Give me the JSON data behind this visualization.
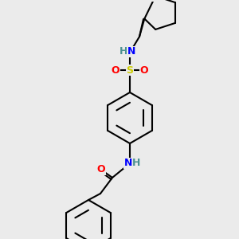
{
  "background_color": "#ebebeb",
  "bond_color": "#000000",
  "bond_width": 1.5,
  "atom_colors": {
    "O": "#ff0000",
    "N": "#0000ff",
    "S": "#cccc00",
    "F": "#ff00ff",
    "H": "#4a9090",
    "C": "#000000"
  },
  "font_size": 9,
  "bold_font_size": 10
}
